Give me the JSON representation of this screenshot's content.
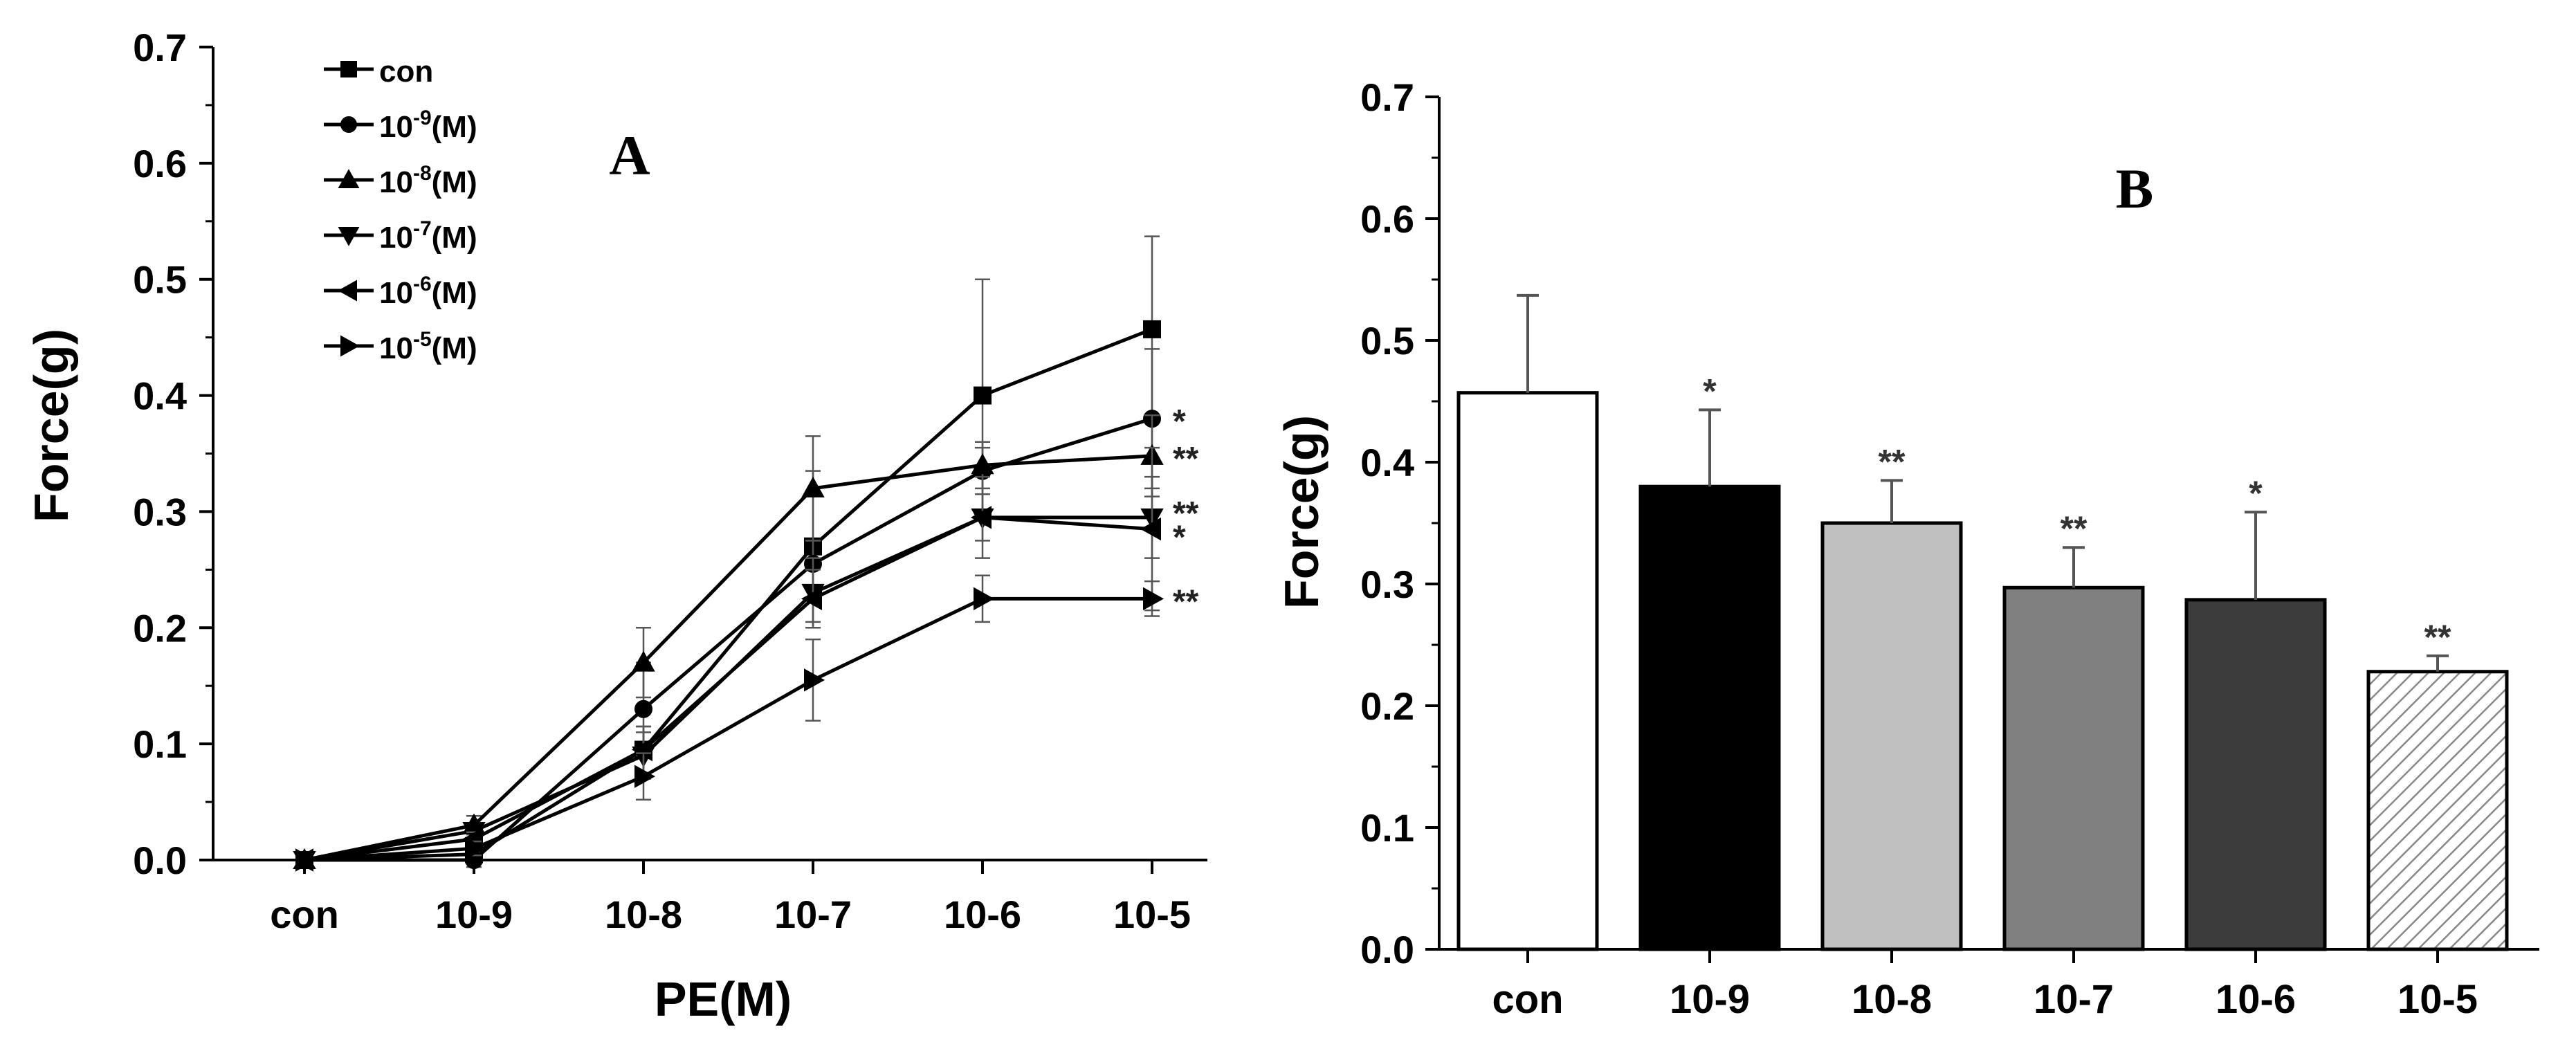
{
  "chart_data": [
    {
      "id": "A",
      "panel_label": "A",
      "type": "line",
      "xlabel": "PE(M)",
      "ylabel": "Force(g)",
      "categories": [
        "con",
        "10-9",
        "10-8",
        "10-7",
        "10-6",
        "10-5"
      ],
      "ylim": [
        0,
        0.7
      ],
      "yticks": [
        "0.0",
        "0.1",
        "0.2",
        "0.3",
        "0.4",
        "0.5",
        "0.6",
        "0.7"
      ],
      "series": [
        {
          "name": "con",
          "legend_base": "con",
          "legend_exp": "",
          "legend_suffix": "",
          "marker": "square",
          "values": [
            0,
            0.005,
            0.095,
            0.27,
            0.4,
            0.457
          ],
          "errors": [
            0,
            0.008,
            0.02,
            0.065,
            0.1,
            0.08
          ]
        },
        {
          "name": "10-9(M)",
          "legend_base": "10",
          "legend_exp": "-9",
          "legend_suffix": "(M)",
          "marker": "circle",
          "values": [
            0,
            0.0,
            0.13,
            0.255,
            0.335,
            0.38
          ],
          "errors": [
            0,
            0.006,
            0.04,
            0.02,
            0.02,
            0.06
          ]
        },
        {
          "name": "10-8(M)",
          "legend_base": "10",
          "legend_exp": "-8",
          "legend_suffix": "(M)",
          "marker": "triangle-up",
          "values": [
            0,
            0.03,
            0.17,
            0.32,
            0.34,
            0.348
          ],
          "errors": [
            0,
            0.008,
            0.03,
            0.045,
            0.02,
            0.035
          ]
        },
        {
          "name": "10-7(M)",
          "legend_base": "10",
          "legend_exp": "-7",
          "legend_suffix": "(M)",
          "marker": "triangle-down",
          "values": [
            0,
            0.025,
            0.09,
            0.23,
            0.295,
            0.295
          ],
          "errors": [
            0,
            0.006,
            0.02,
            0.03,
            0.02,
            0.035
          ]
        },
        {
          "name": "10-6(M)",
          "legend_base": "10",
          "legend_exp": "-6",
          "legend_suffix": "(M)",
          "marker": "triangle-left",
          "values": [
            0,
            0.018,
            0.095,
            0.225,
            0.295,
            0.285
          ],
          "errors": [
            0,
            0.006,
            0.02,
            0.025,
            0.035,
            0.07
          ]
        },
        {
          "name": "10-5(M)",
          "legend_base": "10",
          "legend_exp": "-5",
          "legend_suffix": "(M)",
          "marker": "triangle-right",
          "values": [
            0,
            0.01,
            0.072,
            0.155,
            0.225,
            0.225
          ],
          "errors": [
            0,
            0.006,
            0.02,
            0.035,
            0.02,
            0.015
          ]
        }
      ],
      "annotations": [
        {
          "series": "10-9(M)",
          "text": "*"
        },
        {
          "series": "10-8(M)",
          "text": "**"
        },
        {
          "series": "10-7(M)",
          "text": "**"
        },
        {
          "series": "10-6(M)",
          "text": "*"
        },
        {
          "series": "10-5(M)",
          "text": "**"
        }
      ]
    },
    {
      "id": "B",
      "panel_label": "B",
      "type": "bar",
      "xlabel": "",
      "ylabel": "Force(g)",
      "categories": [
        "con",
        "10-9",
        "10-8",
        "10-7",
        "10-6",
        "10-5"
      ],
      "values": [
        0.457,
        0.38,
        0.35,
        0.297,
        0.287,
        0.228
      ],
      "errors": [
        0.08,
        0.063,
        0.035,
        0.033,
        0.072,
        0.013
      ],
      "significance": [
        "",
        "*",
        "**",
        "**",
        "*",
        "**"
      ],
      "fills": [
        "#ffffff",
        "#000000",
        "#c0c0c0",
        "#808080",
        "#3c3c3c",
        "hatch"
      ],
      "ylim": [
        0,
        0.7
      ],
      "yticks": [
        "0.0",
        "0.1",
        "0.2",
        "0.3",
        "0.4",
        "0.5",
        "0.6",
        "0.7"
      ]
    }
  ]
}
